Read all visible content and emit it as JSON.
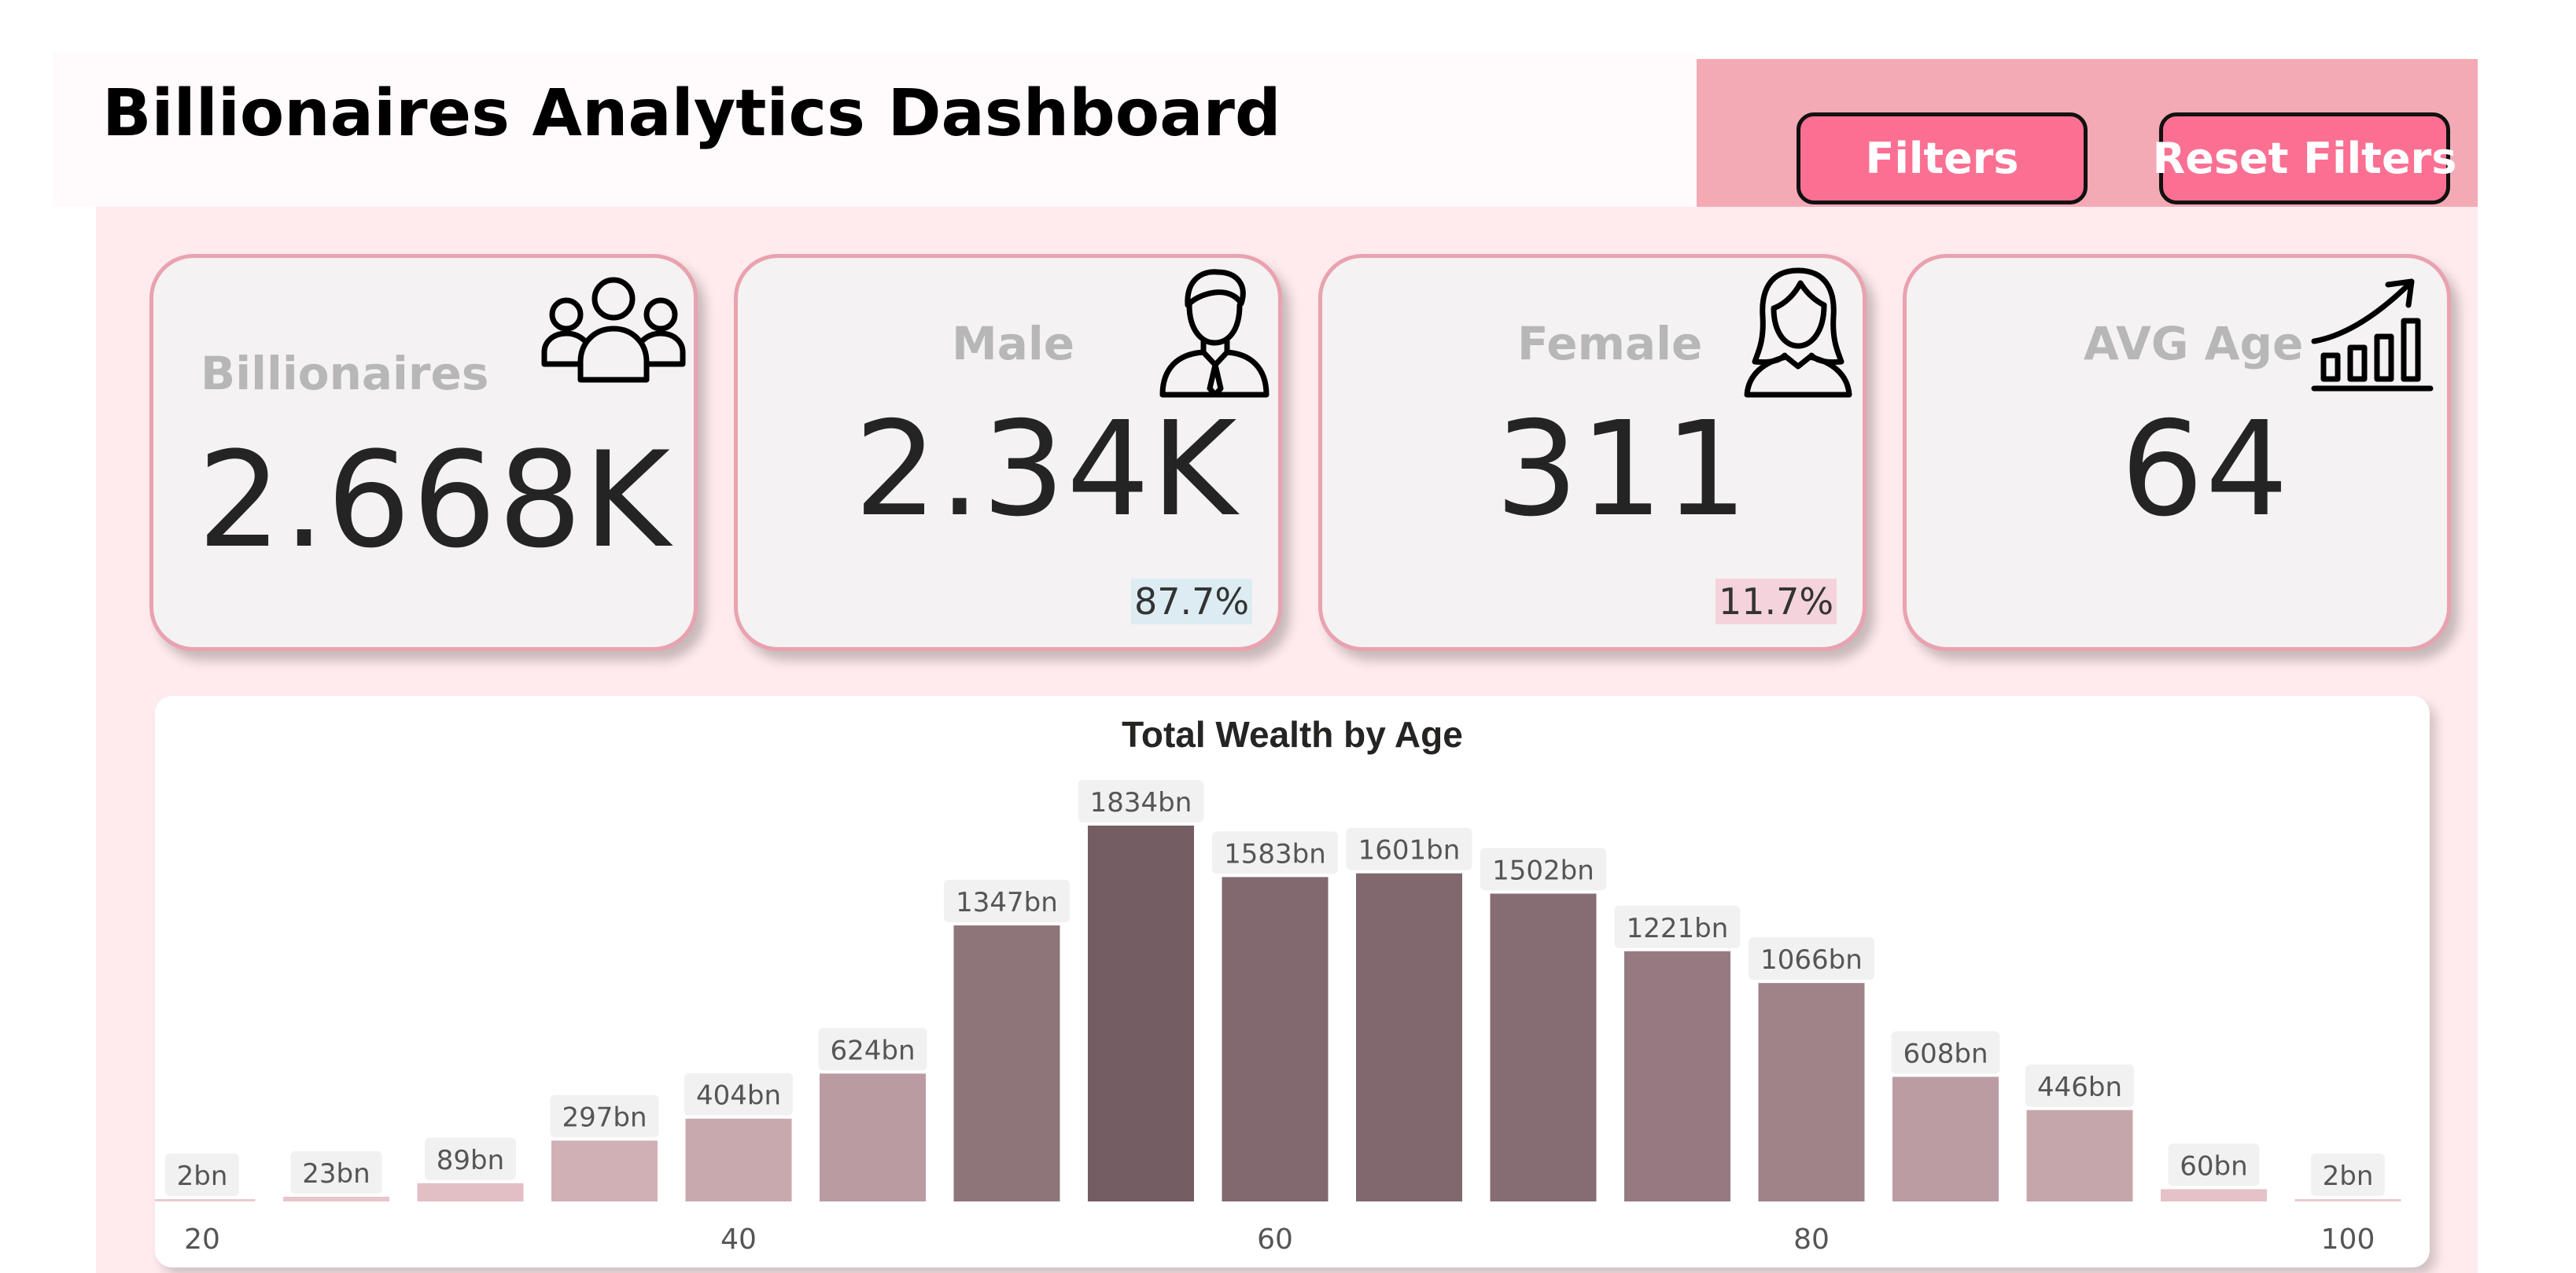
{
  "header": {
    "title": "Billionaires Analytics Dashboard"
  },
  "toolbar": {
    "filters_label": "Filters",
    "reset_label": "Reset Filters"
  },
  "cards": {
    "billionaires": {
      "label": "Billionaires",
      "value": "2.668K",
      "icon": "people-group-icon"
    },
    "male": {
      "label": "Male",
      "value": "2.34K",
      "percent": "87.7%",
      "icon": "man-icon"
    },
    "female": {
      "label": "Female",
      "value": "311",
      "percent": "11.7%",
      "icon": "woman-icon"
    },
    "avg_age": {
      "label": "AVG Age",
      "value": "64",
      "icon": "growth-chart-icon"
    }
  },
  "colors": {
    "accent": "#fb7092",
    "panel": "#f3aab5",
    "male_pct_bg": "#dcecf2",
    "female_pct_bg": "#f4d3dc"
  },
  "chart_data": {
    "type": "bar",
    "title": "Total Wealth by Age",
    "xlabel": "",
    "ylabel": "",
    "x": [
      20,
      25,
      30,
      35,
      40,
      45,
      50,
      55,
      60,
      65,
      70,
      75,
      80,
      85,
      90,
      95,
      100
    ],
    "values": [
      2,
      23,
      89,
      297,
      404,
      624,
      1347,
      1834,
      1583,
      1601,
      1502,
      1221,
      1066,
      608,
      446,
      60,
      2
    ],
    "data_labels": [
      "2bn",
      "23bn",
      "89bn",
      "297bn",
      "404bn",
      "624bn",
      "1347bn",
      "1834bn",
      "1583bn",
      "1601bn",
      "1502bn",
      "1221bn",
      "1066bn",
      "608bn",
      "446bn",
      "60bn",
      "2bn"
    ],
    "x_ticks": [
      20,
      40,
      60,
      80,
      100
    ],
    "grid": false,
    "legend": "none"
  }
}
